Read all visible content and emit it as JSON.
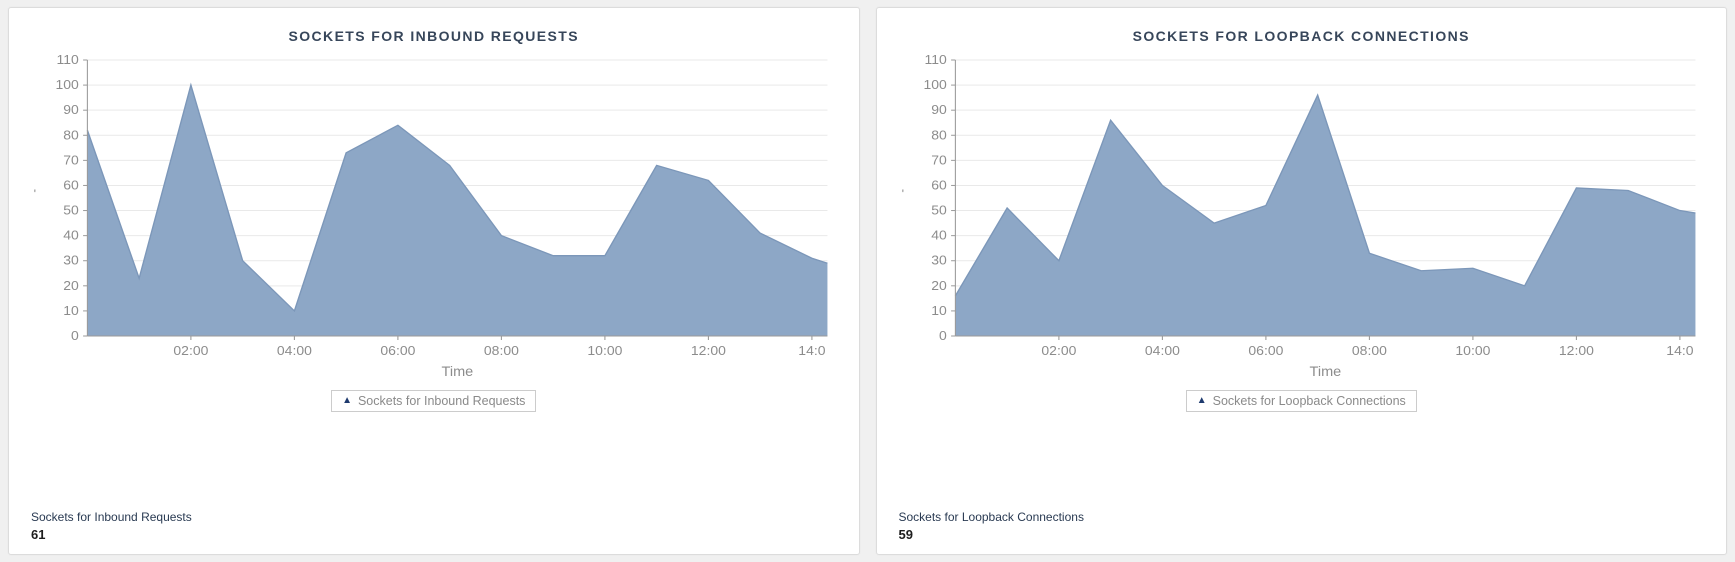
{
  "page_background": "#f0f0f0",
  "cards": [
    {
      "footer_label": "Sockets for Inbound Requests",
      "footer_value": "61"
    },
    {
      "footer_label": "Sockets for Loopback Connections",
      "footer_value": "59"
    }
  ],
  "chart_data": [
    {
      "type": "area",
      "title": "SOCKETS FOR INBOUND REQUESTS",
      "legend": "Sockets for Inbound Requests",
      "xlabel": "Time",
      "ylabel": "'",
      "x": [
        0,
        1,
        2,
        3,
        4,
        5,
        6,
        7,
        8,
        9,
        10,
        11,
        12,
        13,
        14,
        14.3
      ],
      "values": [
        82,
        23,
        100,
        30,
        10,
        73,
        84,
        68,
        40,
        32,
        32,
        68,
        62,
        41,
        31,
        29
      ],
      "xlim": [
        0,
        14.3
      ],
      "ylim": [
        0,
        110
      ],
      "ytick": 10,
      "xticks": [
        {
          "x": 2,
          "label": "02:00"
        },
        {
          "x": 4,
          "label": "04:00"
        },
        {
          "x": 6,
          "label": "06:00"
        },
        {
          "x": 8,
          "label": "08:00"
        },
        {
          "x": 10,
          "label": "10:00"
        },
        {
          "x": 12,
          "label": "12:00"
        },
        {
          "x": 14,
          "label": "14:0"
        }
      ],
      "fill": "#8da7c6",
      "stroke": "#7c97b9",
      "grid": true,
      "legend_position": "bottom"
    },
    {
      "type": "area",
      "title": "SOCKETS FOR LOOPBACK CONNECTIONS",
      "legend": "Sockets for Loopback Connections",
      "xlabel": "Time",
      "ylabel": "'",
      "x": [
        0,
        1,
        2,
        3,
        4,
        5,
        6,
        7,
        8,
        9,
        10,
        11,
        12,
        13,
        14,
        14.3
      ],
      "values": [
        16,
        51,
        30,
        86,
        60,
        45,
        52,
        96,
        33,
        26,
        27,
        20,
        59,
        58,
        50,
        49
      ],
      "xlim": [
        0,
        14.3
      ],
      "ylim": [
        0,
        110
      ],
      "ytick": 10,
      "xticks": [
        {
          "x": 2,
          "label": "02:00"
        },
        {
          "x": 4,
          "label": "04:00"
        },
        {
          "x": 6,
          "label": "06:00"
        },
        {
          "x": 8,
          "label": "08:00"
        },
        {
          "x": 10,
          "label": "10:00"
        },
        {
          "x": 12,
          "label": "12:00"
        },
        {
          "x": 14,
          "label": "14:0"
        }
      ],
      "fill": "#8da7c6",
      "stroke": "#7c97b9",
      "grid": true,
      "legend_position": "bottom"
    }
  ]
}
